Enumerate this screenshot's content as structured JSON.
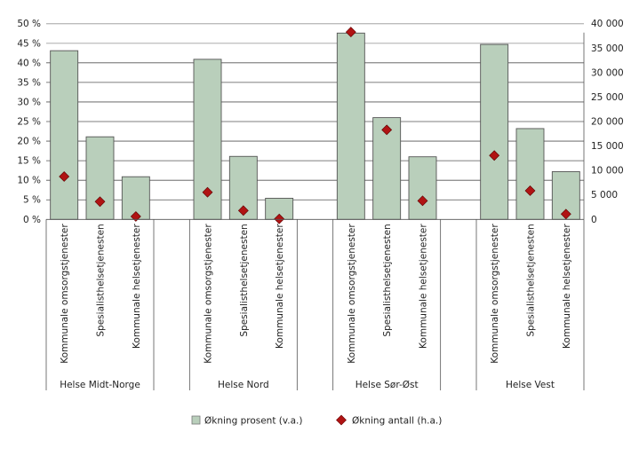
{
  "chart_data": {
    "type": "bar",
    "groups": [
      {
        "label": "Helse Midt-Norge",
        "categories": [
          "Kommunale omsorgstjenester",
          "Spesialisthelsetjenesten",
          "Kommunale helsetjenester"
        ]
      },
      {
        "label": "Helse Nord",
        "categories": [
          "Kommunale omsorgstjenester",
          "Spesialisthelsetjenesten",
          "Kommunale helsetjenester"
        ]
      },
      {
        "label": "Helse Sør-Øst",
        "categories": [
          "Kommunale omsorgstjenester",
          "Spesialisthelsetjenesten",
          "Kommunale helsetjenester"
        ]
      },
      {
        "label": "Helse Vest",
        "categories": [
          "Kommunale omsorgstjenester",
          "Spesialisthelsetjenesten",
          "Kommunale helsetjenester"
        ]
      }
    ],
    "series": [
      {
        "name": "Økning prosent (v.a.)",
        "type": "bar",
        "axis": "left",
        "color": "#b9cfbb",
        "values": [
          43.1,
          21.1,
          10.9,
          40.9,
          16.1,
          5.4,
          47.6,
          26.0,
          16.0,
          44.7,
          23.2,
          12.2
        ]
      },
      {
        "name": "Økning antall (h.a.)",
        "type": "scatter",
        "marker": "diamond",
        "axis": "right",
        "color": "#b01313",
        "values": [
          8760,
          3630,
          600,
          5550,
          1810,
          100,
          38300,
          18300,
          3800,
          13060,
          5860,
          1090
        ]
      }
    ],
    "left_axis": {
      "ylim": [
        0,
        50
      ],
      "ticks": [
        "0 %",
        "5 %",
        "10 %",
        "15 %",
        "20 %",
        "25 %",
        "30 %",
        "35 %",
        "40 %",
        "45 %",
        "50 %"
      ]
    },
    "right_axis": {
      "ylim": [
        0,
        40000
      ],
      "ticks": [
        "0",
        "5 000",
        "10 000",
        "15 000",
        "20 000",
        "25 000",
        "30 000",
        "35 000",
        "40 000"
      ]
    },
    "grid": true,
    "legend": "bottom"
  }
}
